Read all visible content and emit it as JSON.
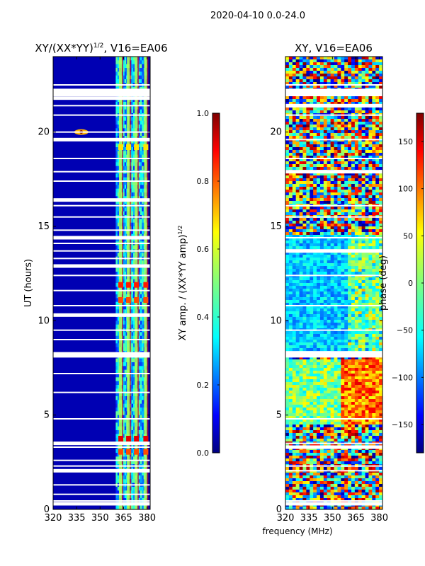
{
  "suptitle": "2020-04-10 0.0-24.0",
  "shared_xlabel": "frequency (MHz)",
  "chart_data": [
    {
      "type": "heatmap",
      "title": "XY/(XX*YY)",
      "title_sup": "1/2",
      "title_suffix": ", V16=EA06",
      "xlabel": "",
      "ylabel": "UT (hours)",
      "xlim": [
        320,
        382
      ],
      "ylim": [
        0,
        24
      ],
      "x_ticks": [
        320,
        335,
        350,
        365,
        380
      ],
      "y_ticks": [
        0,
        5,
        10,
        15,
        20
      ],
      "colormap": "jet",
      "colorbar": {
        "label": "XY amp. / (XX*YY amp)",
        "label_sup": "1/2",
        "range": [
          0.0,
          1.0
        ],
        "ticks": [
          "0.0",
          "0.2",
          "0.4",
          "0.6",
          "0.8",
          "1.0"
        ]
      },
      "background_value": 0.05,
      "active_freq_band": [
        360,
        380
      ],
      "bright_channels_mhz": [
        363,
        368,
        373,
        379
      ],
      "flagged_hours": [
        0.3,
        0.45,
        0.8,
        1.3,
        2.05,
        2.3,
        2.6,
        3.3,
        3.5,
        4.8,
        6.2,
        7.2,
        8.15,
        8.3,
        9.0,
        9.5,
        10.3,
        10.8,
        11.6,
        12.4,
        12.9,
        13.3,
        13.7,
        14.1,
        14.4,
        14.8,
        15.5,
        16.1,
        16.4,
        17.4,
        17.9,
        18.6,
        19.6,
        20.0,
        20.9,
        21.4,
        21.8,
        22.0,
        22.2,
        22.5
      ],
      "bright_events": [
        {
          "ut": 3.75,
          "value": 0.9
        },
        {
          "ut": 3.05,
          "value": 0.8
        },
        {
          "ut": 11.9,
          "value": 0.85
        },
        {
          "ut": 11.1,
          "value": 0.8
        },
        {
          "ut": 19.2,
          "value": 0.65
        }
      ]
    },
    {
      "type": "heatmap",
      "title": "XY, V16=EA06",
      "xlabel": "",
      "ylabel": "",
      "xlim": [
        320,
        382
      ],
      "ylim": [
        0,
        24
      ],
      "x_ticks": [
        320,
        335,
        350,
        365,
        380
      ],
      "y_ticks": [
        0,
        5,
        10,
        15,
        20
      ],
      "colormap": "jet",
      "colorbar": {
        "label": "phase (deg)",
        "range": [
          -180,
          180
        ],
        "ticks": [
          "−150",
          "−100",
          "−50",
          "0",
          "50",
          "100",
          "150"
        ]
      },
      "flagged_hours": [
        0.3,
        0.45,
        2.05,
        2.3,
        3.3,
        3.5,
        4.8,
        8.15,
        8.3,
        9.5,
        10.8,
        12.4,
        13.7,
        14.4,
        15.5,
        16.1,
        17.9,
        18.6,
        19.6,
        20.9,
        21.4,
        22.0,
        22.2,
        22.5
      ]
    }
  ]
}
